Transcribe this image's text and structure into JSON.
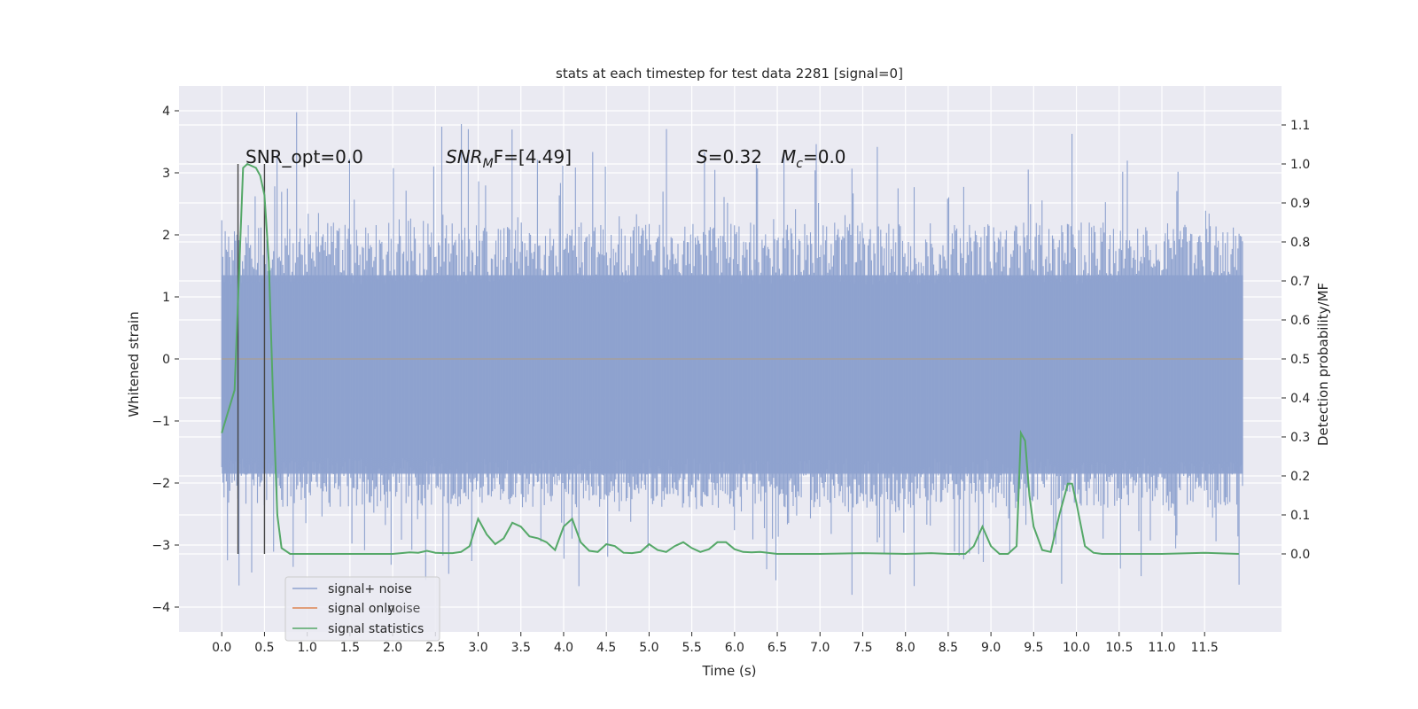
{
  "chart_data": {
    "type": "line",
    "title": "stats at each timestep for test data 2281 [signal=0]",
    "xlabel": "Time (s)",
    "ylabel": "Whitened strain",
    "y2label": "Detection probability/MF",
    "xlim": [
      -0.5,
      12.4
    ],
    "ylim": [
      -4.4,
      4.4
    ],
    "y2lim": [
      -0.2,
      1.2
    ],
    "xticks": [
      "0.0",
      "0.5",
      "1.0",
      "1.5",
      "2.0",
      "2.5",
      "3.0",
      "3.5",
      "4.0",
      "4.5",
      "5.0",
      "5.5",
      "6.0",
      "6.5",
      "7.0",
      "7.5",
      "8.0",
      "8.5",
      "9.0",
      "9.5",
      "10.0",
      "10.5",
      "11.0",
      "11.5"
    ],
    "yticks": [
      "4",
      "3",
      "2",
      "1",
      "0",
      "−1",
      "−2",
      "−3",
      "−4"
    ],
    "y2ticks": [
      "1.1",
      "1.0",
      "0.9",
      "0.8",
      "0.7",
      "0.6",
      "0.5",
      "0.4",
      "0.3",
      "0.2",
      "0.1",
      "0.0"
    ],
    "annotations": {
      "snr_opt": "SNR_opt=0.0",
      "snr_mf_base": "SNR",
      "snr_mf_sub": "M",
      "snr_mf_rest": "F=[4.49]",
      "s_base": "S",
      "s_rest": "=0.32",
      "mc_base": "M",
      "mc_sub": "c",
      "mc_rest": "=0.0"
    },
    "series": [
      {
        "name": "signal+ noise",
        "color": "#8ea2cf",
        "x_range": [
          0.0,
          11.95
        ],
        "y_band": [
          -1.85,
          1.35
        ],
        "spike_max": 4.1,
        "spike_min": -3.9
      },
      {
        "name": "signal only",
        "color": "#dd8452",
        "values_constant": 0.0
      },
      {
        "name": "signal statistics",
        "color": "#55a868",
        "axis": "right",
        "x": [
          0.0,
          0.15,
          0.25,
          0.3,
          0.4,
          0.45,
          0.5,
          0.55,
          0.6,
          0.65,
          0.7,
          0.8,
          1.0,
          1.5,
          2.0,
          2.2,
          2.3,
          2.4,
          2.5,
          2.6,
          2.7,
          2.8,
          2.9,
          3.0,
          3.1,
          3.2,
          3.3,
          3.4,
          3.5,
          3.6,
          3.7,
          3.8,
          3.9,
          4.0,
          4.1,
          4.2,
          4.3,
          4.4,
          4.5,
          4.6,
          4.7,
          4.8,
          4.9,
          5.0,
          5.1,
          5.2,
          5.3,
          5.4,
          5.5,
          5.6,
          5.7,
          5.8,
          5.9,
          6.0,
          6.1,
          6.2,
          6.3,
          6.5,
          7.0,
          7.5,
          8.0,
          8.3,
          8.5,
          8.7,
          8.8,
          8.9,
          9.0,
          9.1,
          9.2,
          9.3,
          9.35,
          9.4,
          9.45,
          9.5,
          9.6,
          9.7,
          9.8,
          9.9,
          9.95,
          10.0,
          10.1,
          10.2,
          10.3,
          10.5,
          11.0,
          11.5,
          11.9
        ],
        "values": [
          0.31,
          0.42,
          0.99,
          1.0,
          0.99,
          0.97,
          0.92,
          0.75,
          0.4,
          0.1,
          0.015,
          0.0,
          0.0,
          0.0,
          0.0,
          0.004,
          0.003,
          0.008,
          0.003,
          0.002,
          0.002,
          0.005,
          0.02,
          0.09,
          0.05,
          0.025,
          0.04,
          0.08,
          0.07,
          0.045,
          0.04,
          0.03,
          0.01,
          0.07,
          0.09,
          0.03,
          0.008,
          0.005,
          0.025,
          0.02,
          0.003,
          0.002,
          0.005,
          0.025,
          0.01,
          0.005,
          0.02,
          0.03,
          0.015,
          0.005,
          0.012,
          0.03,
          0.03,
          0.012,
          0.005,
          0.004,
          0.005,
          0.0,
          0.0,
          0.002,
          0.0,
          0.002,
          0.0,
          0.0,
          0.02,
          0.07,
          0.02,
          0.0,
          0.0,
          0.02,
          0.31,
          0.29,
          0.15,
          0.07,
          0.01,
          0.005,
          0.1,
          0.18,
          0.18,
          0.13,
          0.02,
          0.003,
          0.0,
          0.0,
          0.0,
          0.003,
          0.0
        ]
      }
    ],
    "vlines_x": [
      0.19,
      0.5
    ],
    "legend": {
      "placement": "lower-left",
      "faded_text": "noise"
    },
    "grid": true
  }
}
